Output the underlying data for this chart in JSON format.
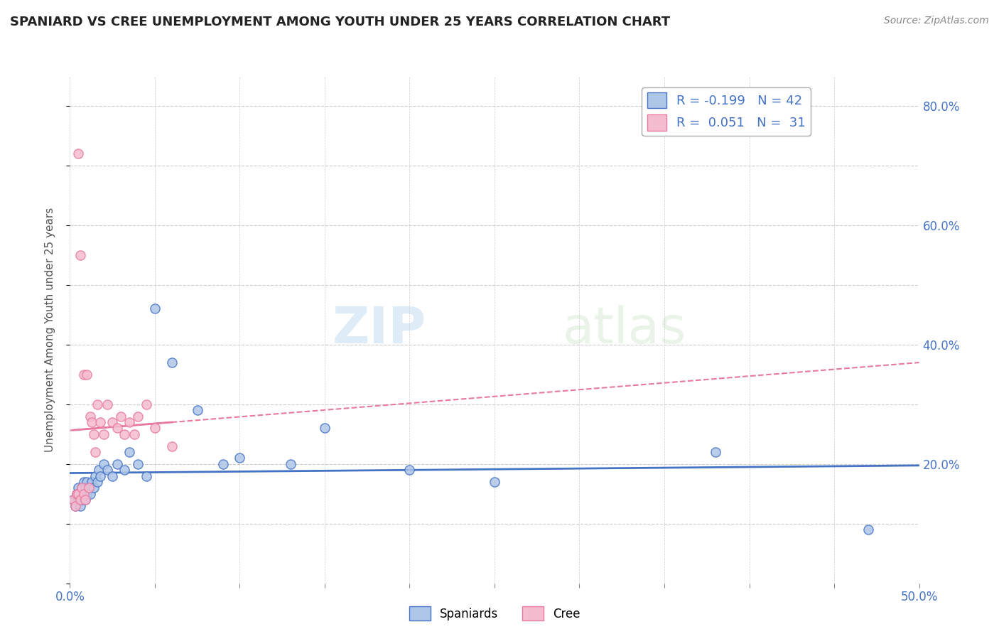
{
  "title": "SPANIARD VS CREE UNEMPLOYMENT AMONG YOUTH UNDER 25 YEARS CORRELATION CHART",
  "source": "Source: ZipAtlas.com",
  "ylabel": "Unemployment Among Youth under 25 years",
  "xlim": [
    0.0,
    0.5
  ],
  "ylim": [
    0.0,
    0.85
  ],
  "legend_R_spaniards": "-0.199",
  "legend_N_spaniards": "42",
  "legend_R_cree": "0.051",
  "legend_N_cree": "31",
  "spaniards_color": "#aec6e8",
  "cree_color": "#f5bcd0",
  "spaniards_line_color": "#4472c4",
  "cree_line_color": "#e8799e",
  "watermark_zip": "ZIP",
  "watermark_atlas": "atlas",
  "spaniards_x": [
    0.002,
    0.003,
    0.004,
    0.005,
    0.005,
    0.006,
    0.006,
    0.007,
    0.007,
    0.008,
    0.008,
    0.009,
    0.009,
    0.01,
    0.01,
    0.011,
    0.012,
    0.013,
    0.014,
    0.015,
    0.016,
    0.017,
    0.018,
    0.02,
    0.022,
    0.025,
    0.028,
    0.032,
    0.035,
    0.04,
    0.045,
    0.05,
    0.06,
    0.075,
    0.09,
    0.1,
    0.13,
    0.15,
    0.2,
    0.25,
    0.38,
    0.47
  ],
  "spaniards_y": [
    0.14,
    0.13,
    0.15,
    0.14,
    0.16,
    0.13,
    0.15,
    0.14,
    0.16,
    0.15,
    0.17,
    0.14,
    0.16,
    0.15,
    0.17,
    0.16,
    0.15,
    0.17,
    0.16,
    0.18,
    0.17,
    0.19,
    0.18,
    0.2,
    0.19,
    0.18,
    0.2,
    0.19,
    0.22,
    0.2,
    0.18,
    0.46,
    0.37,
    0.29,
    0.2,
    0.21,
    0.2,
    0.26,
    0.19,
    0.17,
    0.22,
    0.09
  ],
  "cree_x": [
    0.002,
    0.003,
    0.004,
    0.005,
    0.005,
    0.006,
    0.006,
    0.007,
    0.008,
    0.008,
    0.009,
    0.01,
    0.011,
    0.012,
    0.013,
    0.014,
    0.015,
    0.016,
    0.018,
    0.02,
    0.022,
    0.025,
    0.028,
    0.03,
    0.032,
    0.035,
    0.038,
    0.04,
    0.045,
    0.05,
    0.06
  ],
  "cree_y": [
    0.14,
    0.13,
    0.15,
    0.72,
    0.15,
    0.55,
    0.14,
    0.16,
    0.15,
    0.35,
    0.14,
    0.35,
    0.16,
    0.28,
    0.27,
    0.25,
    0.22,
    0.3,
    0.27,
    0.25,
    0.3,
    0.27,
    0.26,
    0.28,
    0.25,
    0.27,
    0.25,
    0.28,
    0.3,
    0.26,
    0.23
  ],
  "background_color": "#ffffff",
  "grid_color": "#cccccc"
}
